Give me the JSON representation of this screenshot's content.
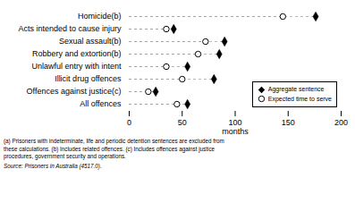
{
  "chart_data": {
    "type": "dot",
    "categories": [
      "All offences",
      "Offences against justice(c)",
      "Illicit drug offences",
      "Unlawful entry with intent",
      "Robbery and extortion(b)",
      "Sexual assault(b)",
      "Acts intended to cause injury",
      "Homicide(b)"
    ],
    "series": [
      {
        "name": "Aggregate sentence",
        "color": "#000000",
        "marker": "diamond",
        "values": [
          55,
          25,
          80,
          55,
          85,
          90,
          42,
          176
        ]
      },
      {
        "name": "Expected time to serve",
        "color": "#000000",
        "marker": "circle",
        "values": [
          45,
          18,
          50,
          35,
          65,
          72,
          35,
          145
        ]
      }
    ],
    "xlabel": "months",
    "xlim": [
      0,
      200
    ],
    "xticks": [
      0,
      50,
      100,
      150,
      200
    ],
    "grid": false,
    "legend": "lower right",
    "footnote": "(a) Prisoners with indeterminate, life and periodic detention sentences are excluded from\nthese calculations. (b) Includes related offences. (c) Includes offences against justice\nprocedures, government security and operations.",
    "source": "Source: Prisoners in Australia (4517.0)."
  }
}
